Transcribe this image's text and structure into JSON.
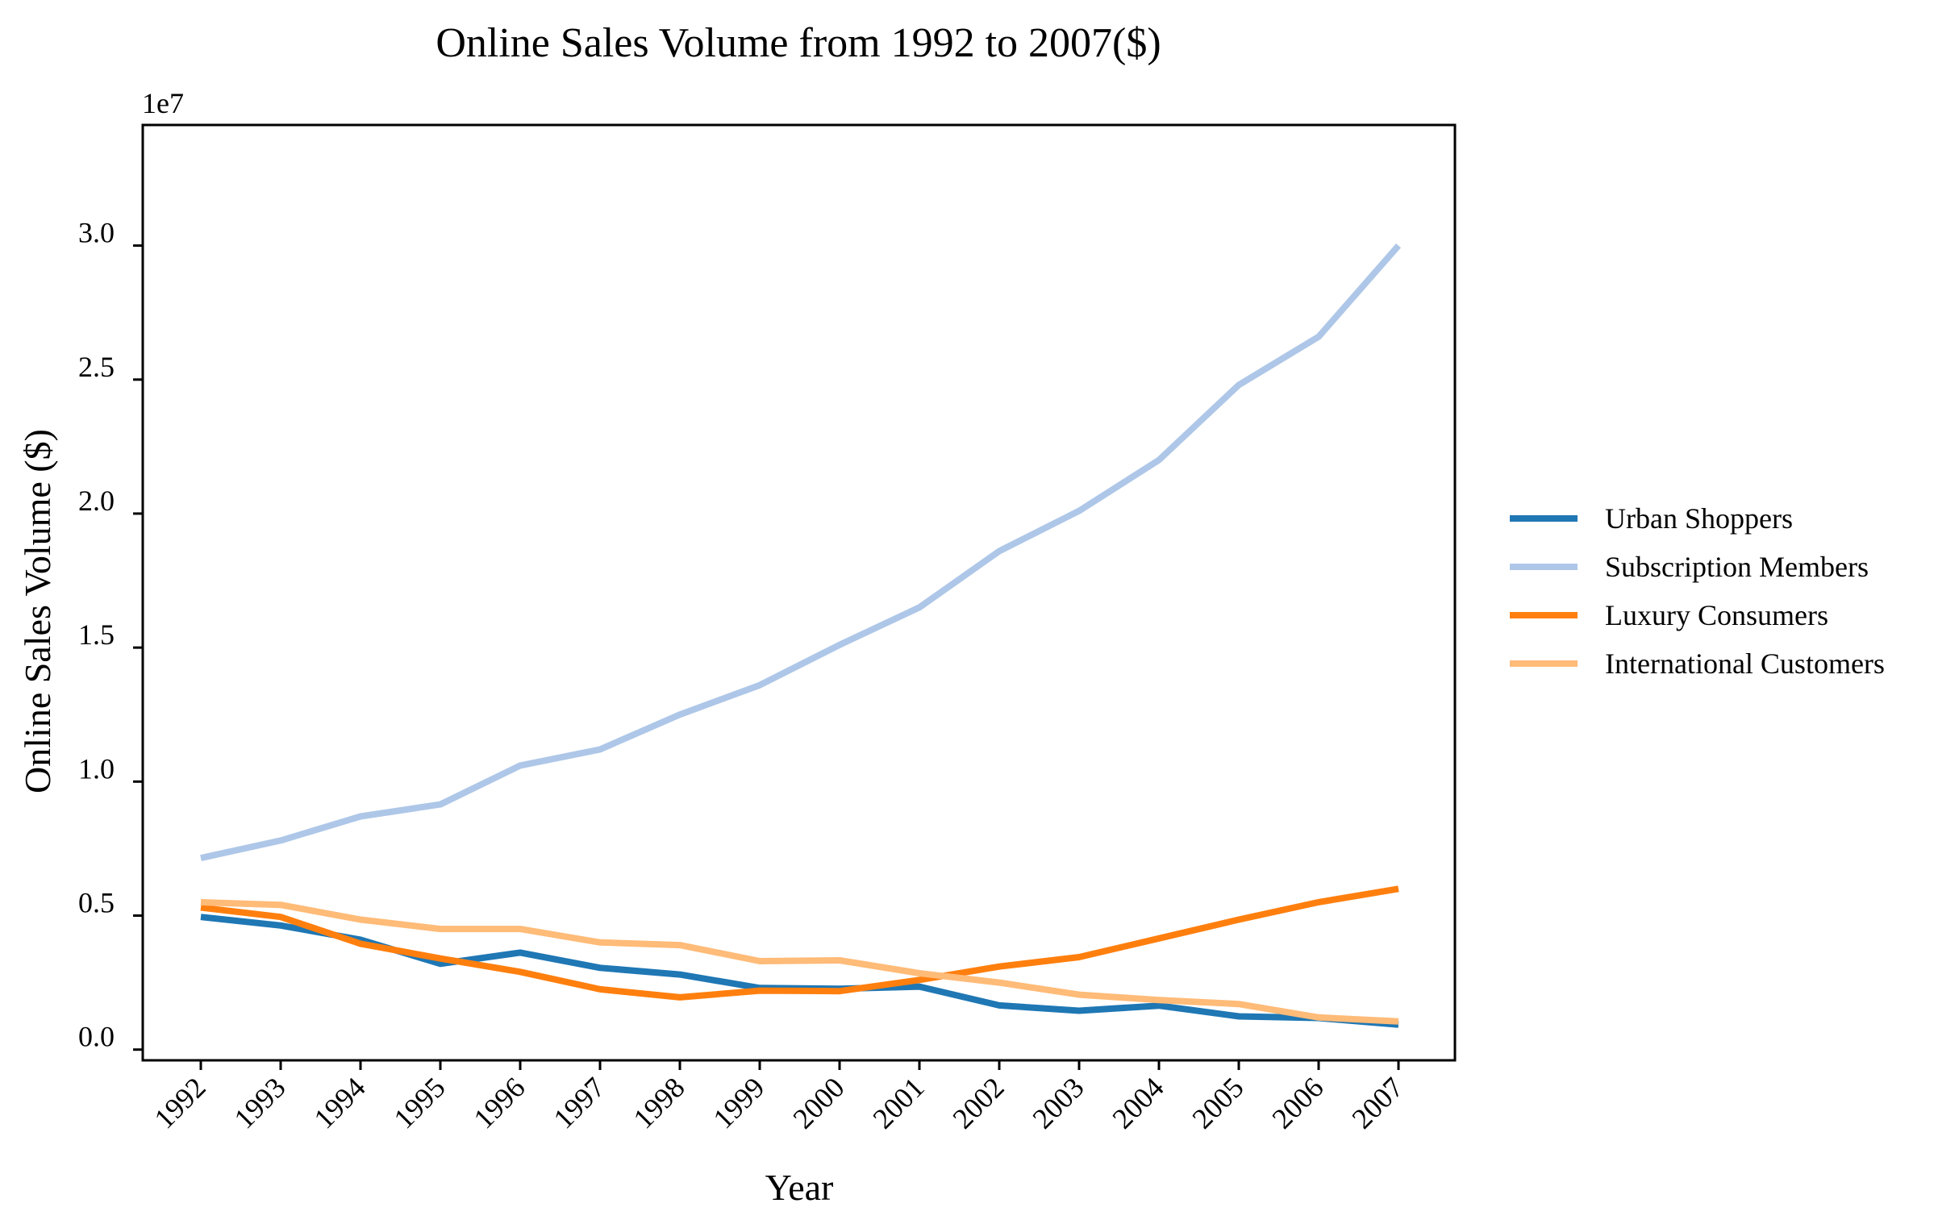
{
  "chart_data": {
    "type": "line",
    "title": "Online Sales Volume from 1992 to 2007($)",
    "xlabel": "Year",
    "ylabel": "Online Sales Volume ($)",
    "y_offset_label": "1e7",
    "ylim": [
      -0.4,
      34.5
    ],
    "yticks": [
      0.0,
      0.5,
      1.0,
      1.5,
      2.0,
      2.5,
      3.0
    ],
    "ytick_labels": [
      "0.0",
      "0.5",
      "1.0",
      "1.5",
      "2.0",
      "2.5",
      "3.0"
    ],
    "y_unit_scale": 10000000,
    "categories": [
      "1992",
      "1993",
      "1994",
      "1995",
      "1996",
      "1997",
      "1998",
      "1999",
      "2000",
      "2001",
      "2002",
      "2003",
      "2004",
      "2005",
      "2006",
      "2007"
    ],
    "legend_position": "right",
    "grid": false,
    "series": [
      {
        "name": "Urban Shoppers",
        "color": "#1f77b4",
        "values": [
          4950000,
          4630000,
          4100000,
          3200000,
          3620000,
          3050000,
          2800000,
          2300000,
          2270000,
          2350000,
          1650000,
          1450000,
          1640000,
          1240000,
          1180000,
          930000
        ]
      },
      {
        "name": "Subscription Members",
        "color": "#aec7e8",
        "values": [
          7150000,
          7800000,
          8700000,
          9150000,
          10600000,
          11200000,
          12500000,
          13600000,
          15100000,
          16500000,
          18600000,
          20100000,
          22000000,
          24800000,
          26600000,
          30000000
        ]
      },
      {
        "name": "Luxury Consumers",
        "color": "#ff7f0e",
        "values": [
          5300000,
          4950000,
          3950000,
          3400000,
          2900000,
          2250000,
          1950000,
          2200000,
          2180000,
          2600000,
          3100000,
          3450000,
          4150000,
          4850000,
          5500000,
          6000000
        ]
      },
      {
        "name": "International Customers",
        "color": "#ffbb78",
        "values": [
          5500000,
          5400000,
          4850000,
          4500000,
          4500000,
          4000000,
          3900000,
          3300000,
          3330000,
          2850000,
          2500000,
          2050000,
          1850000,
          1700000,
          1200000,
          1050000
        ]
      }
    ]
  }
}
